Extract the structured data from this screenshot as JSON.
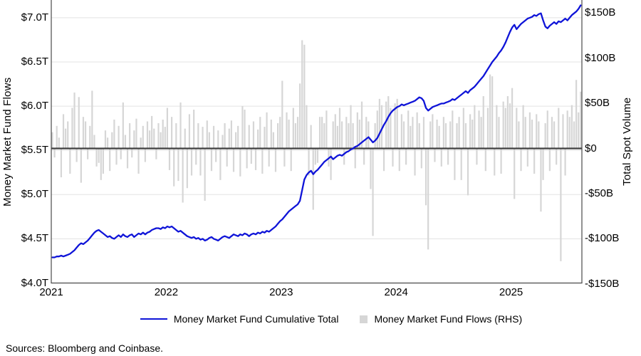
{
  "chart_data": {
    "type": "line+bar",
    "left_axis": {
      "label": "Money Market Fund Flows",
      "unit": "$T",
      "range": [
        4.0,
        7.2
      ],
      "ticks": [
        {
          "label": "$7.0T",
          "value": 7.0
        },
        {
          "label": "$6.5T",
          "value": 6.5
        },
        {
          "label": "$6.0T",
          "value": 6.0
        },
        {
          "label": "$5.5T",
          "value": 5.5
        },
        {
          "label": "$5.0T",
          "value": 5.0
        },
        {
          "label": "$4.5T",
          "value": 4.5
        },
        {
          "label": "$4.0T",
          "value": 4.0
        }
      ]
    },
    "right_axis": {
      "label": "Total Spot Volume",
      "unit": "$B",
      "range": [
        -150,
        150
      ],
      "ticks": [
        {
          "label": "$150B",
          "value": 150
        },
        {
          "label": "$100B",
          "value": 100
        },
        {
          "label": "$50B",
          "value": 50
        },
        {
          "label": "$0",
          "value": 0
        },
        {
          "label": "-$50B",
          "value": -50
        },
        {
          "label": "-$100B",
          "value": -100
        },
        {
          "label": "-$150B",
          "value": -150
        }
      ]
    },
    "x_axis": {
      "start_year": 2021,
      "end": 2025.62,
      "points_per_year": 52,
      "ticks": [
        {
          "label": "2021",
          "year": 2021
        },
        {
          "label": "2022",
          "year": 2022
        },
        {
          "label": "2023",
          "year": 2023
        },
        {
          "label": "2024",
          "year": 2024
        },
        {
          "label": "2025",
          "year": 2025
        }
      ]
    },
    "grid": "horizontal-left-axis",
    "legend_position": "bottom-center",
    "series": [
      {
        "name": "Money Market Fund Cumulative Total",
        "type": "line",
        "axis": "left",
        "color": "#0f14d8",
        "unit": "$T",
        "values": [
          4.29,
          4.29,
          4.3,
          4.3,
          4.31,
          4.3,
          4.31,
          4.32,
          4.33,
          4.35,
          4.37,
          4.4,
          4.43,
          4.45,
          4.44,
          4.46,
          4.48,
          4.51,
          4.54,
          4.57,
          4.59,
          4.6,
          4.58,
          4.56,
          4.54,
          4.52,
          4.53,
          4.51,
          4.5,
          4.52,
          4.54,
          4.52,
          4.55,
          4.53,
          4.52,
          4.54,
          4.55,
          4.52,
          4.54,
          4.56,
          4.55,
          4.57,
          4.55,
          4.57,
          4.58,
          4.6,
          4.61,
          4.62,
          4.62,
          4.61,
          4.63,
          4.62,
          4.64,
          4.63,
          4.64,
          4.62,
          4.6,
          4.58,
          4.59,
          4.57,
          4.55,
          4.53,
          4.52,
          4.51,
          4.52,
          4.5,
          4.51,
          4.49,
          4.5,
          4.48,
          4.49,
          4.51,
          4.52,
          4.5,
          4.49,
          4.48,
          4.5,
          4.52,
          4.53,
          4.52,
          4.51,
          4.53,
          4.55,
          4.54,
          4.53,
          4.55,
          4.54,
          4.56,
          4.55,
          4.53,
          4.55,
          4.56,
          4.55,
          4.57,
          4.56,
          4.58,
          4.57,
          4.59,
          4.58,
          4.6,
          4.62,
          4.64,
          4.67,
          4.7,
          4.72,
          4.75,
          4.78,
          4.81,
          4.83,
          4.85,
          4.87,
          4.89,
          4.93,
          5.05,
          5.17,
          5.22,
          5.25,
          5.27,
          5.23,
          5.26,
          5.28,
          5.31,
          5.34,
          5.37,
          5.39,
          5.41,
          5.43,
          5.4,
          5.42,
          5.44,
          5.45,
          5.44,
          5.46,
          5.48,
          5.49,
          5.51,
          5.52,
          5.54,
          5.55,
          5.57,
          5.59,
          5.61,
          5.63,
          5.65,
          5.62,
          5.59,
          5.61,
          5.64,
          5.69,
          5.74,
          5.79,
          5.83,
          5.88,
          5.92,
          5.95,
          5.97,
          5.99,
          6.0,
          6.02,
          6.01,
          6.02,
          6.03,
          6.04,
          6.05,
          6.06,
          6.08,
          6.1,
          6.09,
          6.06,
          5.98,
          5.95,
          5.97,
          5.99,
          6.0,
          6.01,
          6.02,
          6.03,
          6.03,
          6.04,
          6.05,
          6.06,
          6.08,
          6.07,
          6.09,
          6.11,
          6.13,
          6.15,
          6.17,
          6.15,
          6.18,
          6.2,
          6.22,
          6.25,
          6.28,
          6.31,
          6.34,
          6.38,
          6.42,
          6.46,
          6.5,
          6.53,
          6.56,
          6.6,
          6.63,
          6.67,
          6.72,
          6.78,
          6.84,
          6.89,
          6.92,
          6.87,
          6.9,
          6.93,
          6.95,
          6.97,
          6.99,
          7.0,
          7.01,
          7.03,
          7.02,
          7.04,
          7.05,
          6.97,
          6.9,
          6.88,
          6.91,
          6.93,
          6.95,
          6.93,
          6.96,
          6.95,
          6.97,
          6.99,
          6.97,
          7.0,
          7.03,
          7.05,
          7.07,
          7.1,
          7.14
        ]
      },
      {
        "name": "Money Market Fund Flows (RHS)",
        "type": "bar",
        "axis": "right",
        "color": "#d6d6d6",
        "unit": "$B",
        "values": [
          18,
          -10,
          25,
          12,
          -32,
          38,
          22,
          30,
          -28,
          45,
          62,
          -15,
          57,
          -38,
          35,
          30,
          -12,
          25,
          64,
          15,
          -20,
          -16,
          -35,
          -28,
          20,
          12,
          -25,
          18,
          32,
          -18,
          25,
          -12,
          51,
          15,
          -22,
          28,
          -10,
          20,
          33,
          -28,
          12,
          25,
          -15,
          30,
          20,
          36,
          22,
          -12,
          28,
          18,
          32,
          24,
          45,
          -24,
          35,
          -42,
          28,
          -36,
          51,
          -60,
          22,
          -44,
          38,
          -30,
          43,
          -18,
          28,
          -30,
          24,
          -58,
          31,
          18,
          -25,
          25,
          -15,
          20,
          -35,
          15,
          28,
          -20,
          22,
          31,
          -26,
          18,
          25,
          -31,
          47,
          43,
          -22,
          26,
          -17,
          30,
          -24,
          21,
          35,
          -28,
          24,
          40,
          -20,
          32,
          18,
          -26,
          28,
          35,
          75,
          -20,
          40,
          32,
          -25,
          45,
          28,
          35,
          72,
          120,
          115,
          48,
          -30,
          26,
          -68,
          -18,
          -16,
          35,
          35,
          28,
          42,
          -20,
          -35,
          30,
          38,
          25,
          45,
          30,
          -18,
          35,
          28,
          48,
          28,
          -22,
          40,
          32,
          52,
          -18,
          35,
          30,
          -45,
          -97,
          28,
          42,
          55,
          48,
          -25,
          52,
          58,
          45,
          -20,
          50,
          55,
          -25,
          38,
          30,
          -18,
          42,
          25,
          35,
          -30,
          40,
          28,
          -22,
          35,
          -63,
          -112,
          30,
          38,
          -15,
          32,
          25,
          -20,
          35,
          28,
          -18,
          30,
          42,
          -35,
          28,
          35,
          -35,
          45,
          28,
          -52,
          38,
          32,
          48,
          -18,
          42,
          35,
          58,
          -25,
          45,
          82,
          80,
          -30,
          48,
          35,
          -28,
          52,
          45,
          58,
          50,
          67,
          -56,
          45,
          30,
          -25,
          48,
          35,
          -20,
          40,
          32,
          -28,
          38,
          30,
          -70,
          -35,
          28,
          42,
          -25,
          35,
          30,
          -18,
          45,
          -125,
          38,
          -30,
          42,
          35,
          48,
          30,
          76,
          40,
          63
        ]
      }
    ]
  },
  "legend": {
    "line_label": "Money Market Fund Cumulative Total",
    "bar_label": "Money Market Fund Flows (RHS)"
  },
  "footer": {
    "sources": "Sources: Bloomberg and Coinbase."
  },
  "colors": {
    "line": "#0f14d8",
    "bars": "#d6d6d6",
    "grid": "#e3e3e3",
    "border": "#4a4a4a",
    "zero_line": "#404040"
  }
}
